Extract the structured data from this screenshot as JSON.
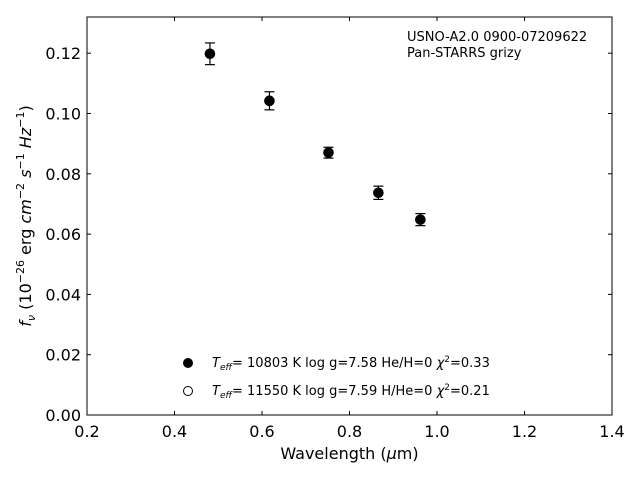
{
  "chart_data": {
    "type": "scatter",
    "xlabel": "Wavelength (μm)",
    "ylabel": "f_ν (10^-26 erg cm^-2 s^-1 Hz^-1)",
    "xlim": [
      0.2,
      1.4
    ],
    "ylim": [
      0.0,
      0.132
    ],
    "xticks": [
      0.2,
      0.4,
      0.6,
      0.8,
      1.0,
      1.2,
      1.4
    ],
    "yticks": [
      0.0,
      0.02,
      0.04,
      0.06,
      0.08,
      0.1,
      0.12
    ],
    "xtick_labels": [
      "0.2",
      "0.4",
      "0.6",
      "0.8",
      "1.0",
      "1.2",
      "1.4"
    ],
    "ytick_labels": [
      "0.00",
      "0.02",
      "0.04",
      "0.06",
      "0.08",
      "0.10",
      "0.12"
    ],
    "grid": false,
    "annotation": [
      "USNO-A2.0 0900-07209622",
      "Pan-STARRS grizy"
    ],
    "annotation_placement": "top-right",
    "legend_placement": "bottom-center",
    "series": [
      {
        "name": "Teff= 10803 K  log g=7.58  He/H=0  χ²=0.33",
        "marker": "filled-circle",
        "color": "#000000",
        "x": [
          0.481,
          0.617,
          0.752,
          0.866,
          0.962
        ],
        "y": [
          0.1198,
          0.1042,
          0.087,
          0.0737,
          0.0648
        ],
        "yerr": [
          0.0036,
          0.003,
          0.0018,
          0.0022,
          0.002
        ]
      },
      {
        "name": "Teff= 11550 K  log g=7.59  H/He=0  χ²=0.21",
        "marker": "open-circle",
        "color": "#000000",
        "x": [],
        "y": []
      }
    ]
  }
}
